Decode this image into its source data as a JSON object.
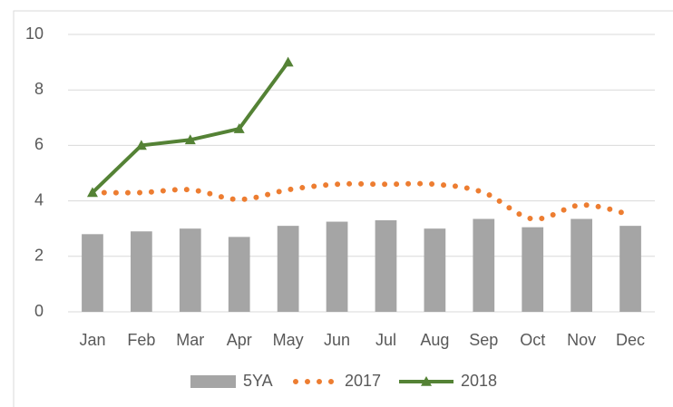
{
  "chart_data": {
    "type": "combo",
    "categories": [
      "Jan",
      "Feb",
      "Mar",
      "Apr",
      "May",
      "Jun",
      "Jul",
      "Aug",
      "Sep",
      "Oct",
      "Nov",
      "Dec"
    ],
    "series": [
      {
        "name": "5YA",
        "type": "bar",
        "color": "#a5a5a5",
        "values": [
          2.8,
          2.9,
          3.0,
          2.7,
          3.1,
          3.25,
          3.3,
          3.0,
          3.35,
          3.05,
          3.35,
          3.1
        ]
      },
      {
        "name": "2017",
        "type": "dotted-line",
        "color": "#ed7d31",
        "values": [
          4.3,
          4.3,
          4.4,
          4.05,
          4.4,
          4.6,
          4.6,
          4.6,
          4.3,
          3.35,
          3.85,
          3.5
        ]
      },
      {
        "name": "2018",
        "type": "line",
        "color": "#548235",
        "marker": "triangle",
        "values": [
          4.3,
          6.0,
          6.2,
          6.6,
          9.0,
          null,
          null,
          null,
          null,
          null,
          null,
          null
        ]
      }
    ],
    "ylim": [
      0,
      10
    ],
    "yticks": [
      0,
      2,
      4,
      6,
      8,
      10
    ],
    "grid": true,
    "legend": "bottom"
  }
}
